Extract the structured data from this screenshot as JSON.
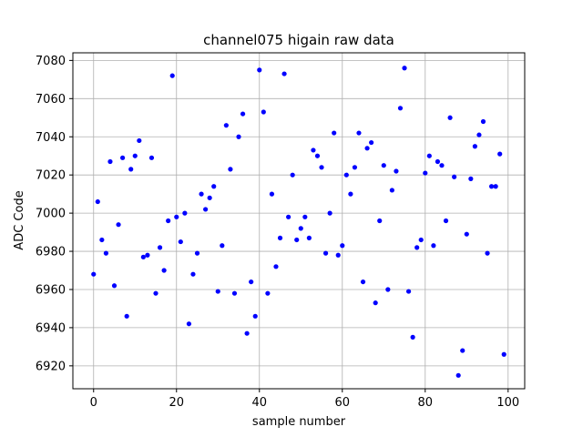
{
  "chart_data": {
    "type": "scatter",
    "title": "channel075 higain raw data",
    "xlabel": "sample number",
    "ylabel": "ADC Code",
    "xlim": [
      -5,
      104
    ],
    "ylim": [
      6908,
      7084
    ],
    "xticks": [
      0,
      20,
      40,
      60,
      80,
      100
    ],
    "yticks": [
      6920,
      6940,
      6960,
      6980,
      7000,
      7020,
      7040,
      7060,
      7080
    ],
    "grid": true,
    "marker_color": "#0000ff",
    "series": [
      {
        "x": [
          0,
          1,
          2,
          3,
          4,
          5,
          6,
          7,
          8,
          9,
          10,
          11,
          12,
          13,
          14,
          15,
          16,
          17,
          18,
          19,
          20,
          21,
          22,
          23,
          24,
          25,
          26,
          27,
          28,
          29,
          30,
          31,
          32,
          33,
          34,
          35,
          36,
          37,
          38,
          39,
          40,
          41,
          42,
          43,
          44,
          45,
          46,
          47,
          48,
          49,
          50,
          51,
          52,
          53,
          54,
          55,
          56,
          57,
          58,
          59,
          60,
          61,
          62,
          63,
          64,
          65,
          66,
          67,
          68,
          69,
          70,
          71,
          72,
          73,
          74,
          75,
          76,
          77,
          78,
          79,
          80,
          81,
          82,
          83,
          84,
          85,
          86,
          87,
          88,
          89,
          90,
          91,
          92,
          93,
          94,
          95,
          96,
          97,
          98,
          99
        ],
        "y": [
          6968,
          7006,
          6986,
          6979,
          7027,
          6962,
          6994,
          7029,
          6946,
          7023,
          7030,
          7038,
          6977,
          6978,
          7029,
          6958,
          6982,
          6970,
          6996,
          7072,
          6998,
          6985,
          7000,
          6942,
          6968,
          6979,
          7010,
          7002,
          7008,
          7014,
          6959,
          6983,
          7046,
          7023,
          6958,
          7040,
          7052,
          6937,
          6964,
          6946,
          7075,
          7053,
          6958,
          7010,
          6972,
          6987,
          7073,
          6998,
          7020,
          6986,
          6992,
          6998,
          6987,
          7033,
          7030,
          7024,
          6979,
          7000,
          7042,
          6978,
          6983,
          7020,
          7010,
          7024,
          7042,
          6964,
          7034,
          7037,
          6953,
          6996,
          7025,
          6960,
          7012,
          7022,
          7055,
          7076,
          6959,
          6935,
          6982,
          6986,
          7021,
          7030,
          6983,
          7027,
          7025,
          6996,
          7050,
          7019,
          6915,
          6928,
          6989,
          7018,
          7035,
          7041,
          7048,
          6979,
          7014,
          7014,
          7031,
          6926
        ]
      }
    ]
  }
}
